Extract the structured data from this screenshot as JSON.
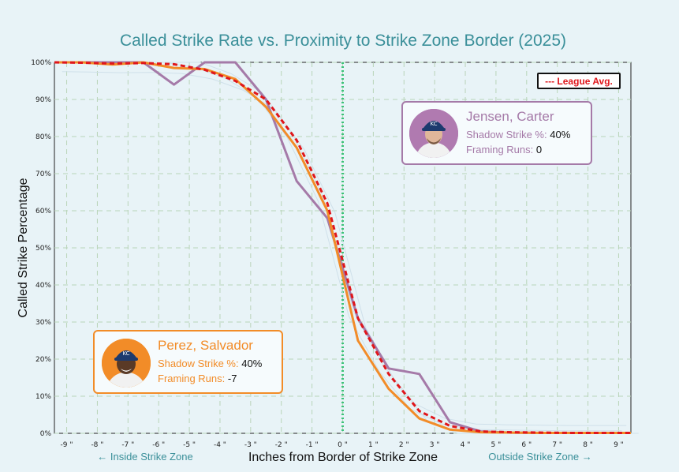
{
  "title": "Called Strike Rate vs. Proximity to Strike Zone Border (2025)",
  "colors": {
    "background": "#e8f3f7",
    "title": "#3a8f99",
    "league": "#e0161b",
    "perez": "#f28c28",
    "jensen": "#a57aa8",
    "zone_border": "#3cc37a",
    "grid": "#b9d4b9"
  },
  "legend": {
    "label": "--- League Avg."
  },
  "players": [
    {
      "name": "Jensen, Carter",
      "shadow_label": "Shadow Strike %:",
      "shadow_value": "40%",
      "framing_label": "Framing Runs:",
      "framing_value": "0",
      "color": "#a57aa8",
      "avatar_icon": "player-headshot-icon"
    },
    {
      "name": "Perez, Salvador",
      "shadow_label": "Shadow Strike %:",
      "shadow_value": "40%",
      "framing_label": "Framing Runs:",
      "framing_value": "-7",
      "color": "#f28c28",
      "avatar_icon": "player-headshot-icon"
    }
  ],
  "chart_data": {
    "type": "line",
    "title": "Called Strike Rate vs. Proximity to Strike Zone Border (2025)",
    "xlabel": "Inches from Border of Strike Zone",
    "ylabel": "Called Strike Percentage",
    "x_annotation_left": "← Inside Strike Zone",
    "x_annotation_right": "Outside Strike Zone →",
    "xlim": [
      -9.4,
      9.4
    ],
    "ylim": [
      0,
      100
    ],
    "x_ticks": [
      -9,
      -8,
      -7,
      -6,
      -5,
      -4,
      -3,
      -2,
      -1,
      0,
      1,
      2,
      3,
      4,
      5,
      6,
      7,
      8,
      9
    ],
    "x_tick_labels": [
      "-9 \"",
      "-8 \"",
      "-7 \"",
      "-6 \"",
      "-5 \"",
      "-4 \"",
      "-3 \"",
      "-2 \"",
      "-1 \"",
      "0 \"",
      "1 \"",
      "2 \"",
      "3 \"",
      "4 \"",
      "5 \"",
      "6 \"",
      "7 \"",
      "8 \"",
      "9 \""
    ],
    "y_ticks": [
      0,
      10,
      20,
      30,
      40,
      50,
      60,
      70,
      80,
      90,
      100
    ],
    "y_tick_labels": [
      "0%",
      "10%",
      "20%",
      "30%",
      "40%",
      "50%",
      "60%",
      "70%",
      "80%",
      "90%",
      "100%"
    ],
    "grid": true,
    "zone_border_x": 0,
    "legend_position": "top-right",
    "series": [
      {
        "name": "League Avg.",
        "style": "dashed",
        "color": "#e0161b",
        "x": [
          -9.4,
          -8.5,
          -7.5,
          -6.5,
          -5.5,
          -4.5,
          -3.5,
          -2.5,
          -1.5,
          -0.5,
          0.5,
          1.5,
          2.5,
          3.5,
          4.5,
          5.5,
          6.5,
          7.5,
          8.5,
          9.4
        ],
        "y": [
          100,
          99.9,
          99.7,
          99.8,
          99.5,
          98,
          95,
          90,
          79,
          62,
          31,
          16,
          6,
          2,
          0.5,
          0.3,
          0.2,
          0.1,
          0.1,
          0.1
        ]
      },
      {
        "name": "Perez, Salvador",
        "color": "#f28c28",
        "x": [
          -9.4,
          -8.5,
          -7.5,
          -6.5,
          -5.5,
          -4.5,
          -3.5,
          -2.5,
          -1.5,
          -0.5,
          0.5,
          1.5,
          2.5,
          3.5,
          4.5,
          5.5,
          6.5,
          7.5,
          8.5,
          9.4
        ],
        "y": [
          100,
          100,
          99.4,
          100,
          98.5,
          98.2,
          95.5,
          88,
          77,
          60,
          25,
          12,
          4,
          1,
          0.3,
          0.2,
          0.1,
          0.1,
          0.1,
          0.1
        ]
      },
      {
        "name": "Jensen, Carter",
        "color": "#a57aa8",
        "x": [
          -9.4,
          -8.5,
          -7.5,
          -6.5,
          -5.5,
          -4.5,
          -3.5,
          -2.5,
          -1.5,
          -0.5,
          0.5,
          1.5,
          2.5,
          3.5,
          4.5,
          5.5,
          6.5,
          7.5,
          8.5,
          9.4
        ],
        "y": [
          100,
          100,
          100,
          100,
          94,
          100,
          100,
          90,
          68,
          58,
          31,
          17.5,
          16,
          3,
          0.5,
          0.2,
          0.1,
          0.1,
          0.1,
          0.1
        ]
      }
    ]
  }
}
